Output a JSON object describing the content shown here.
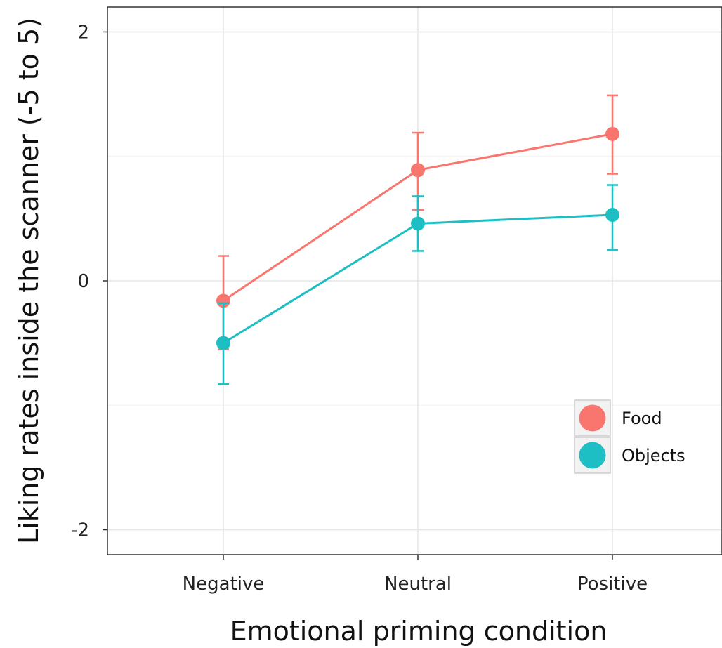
{
  "chart_data": {
    "type": "line",
    "categories": [
      "Negative",
      "Neutral",
      "Positive"
    ],
    "series": [
      {
        "name": "Food",
        "color": "#F8766D",
        "values": [
          -0.16,
          0.89,
          1.18
        ],
        "error_low": [
          -0.55,
          0.57,
          0.86
        ],
        "error_high": [
          0.2,
          1.19,
          1.49
        ]
      },
      {
        "name": "Objects",
        "color": "#1DBFC4",
        "values": [
          -0.5,
          0.46,
          0.53
        ],
        "error_low": [
          -0.83,
          0.24,
          0.25
        ],
        "error_high": [
          -0.18,
          0.68,
          0.77
        ]
      }
    ],
    "xlabel": "Emotional priming condition",
    "ylabel": "Liking rates inside the scanner (-5 to 5)",
    "ylim": [
      -2.2,
      2.2
    ],
    "yticks": [
      -2,
      0,
      2
    ],
    "grid": true,
    "legend_position": "bottom-right"
  }
}
